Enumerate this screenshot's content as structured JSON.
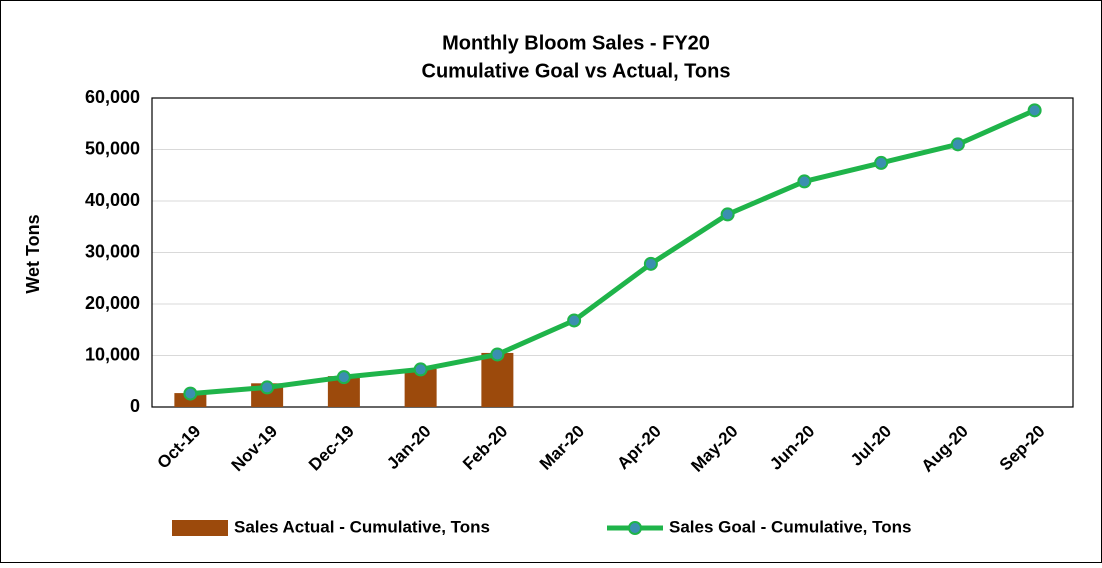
{
  "chart_data": {
    "type": "combo",
    "title": "Monthly Bloom Sales - FY20",
    "subtitle": "Cumulative Goal vs Actual, Tons",
    "y_label": "Wet Tons",
    "categories": [
      "Oct-19",
      "Nov-19",
      "Dec-19",
      "Jan-20",
      "Feb-20",
      "Mar-20",
      "Apr-20",
      "May-20",
      "Jun-20",
      "Jul-20",
      "Aug-20",
      "Sep-20"
    ],
    "series": [
      {
        "name": "Sales Actual - Cumulative, Tons",
        "type": "bar",
        "color": "#9c4a0c",
        "values": [
          2700,
          4600,
          6000,
          7400,
          10500,
          null,
          null,
          null,
          null,
          null,
          null,
          null
        ]
      },
      {
        "name": "Sales Goal - Cumulative, Tons",
        "type": "line",
        "color": "#1fb44a",
        "marker_color": "#3b8fb0",
        "values": [
          2600,
          3800,
          5800,
          7300,
          10200,
          16800,
          27800,
          37400,
          43800,
          47400,
          51000,
          57600
        ]
      }
    ],
    "ylim": [
      0,
      60000
    ],
    "yticks": [
      0,
      {
        "value": 10000,
        "label": "10,000"
      },
      {
        "value": 20000,
        "label": "20,000"
      },
      {
        "value": 30000,
        "label": "30,000"
      },
      {
        "value": 40000,
        "label": "40,000"
      },
      {
        "value": 50000,
        "label": "50,000"
      },
      {
        "value": 60000,
        "label": "60,000"
      }
    ],
    "grid": true,
    "legend": "bottom"
  }
}
